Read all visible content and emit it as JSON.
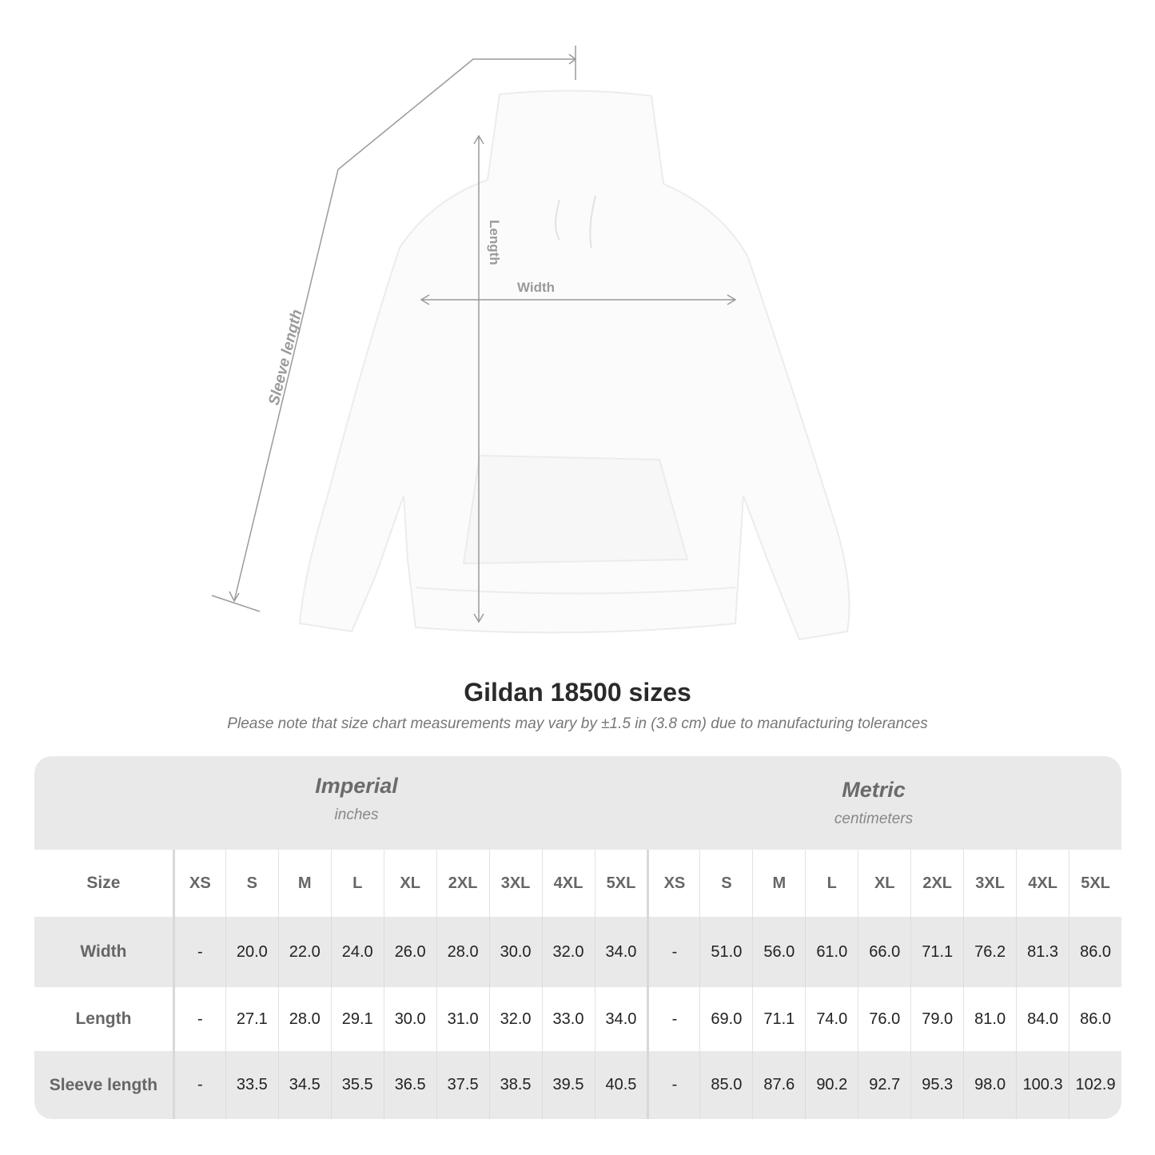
{
  "figure": {
    "labels": {
      "sleeve": "Sleeve length",
      "length": "Length",
      "width": "Width"
    }
  },
  "title": "Gildan 18500 sizes",
  "subtitle": "Please note that size chart measurements may vary by ±1.5 in (3.8 cm) due to manufacturing tolerances",
  "table": {
    "imperial": {
      "name": "Imperial",
      "unit": "inches"
    },
    "metric": {
      "name": "Metric",
      "unit": "centimeters"
    },
    "size_label": "Size",
    "sizes": [
      "XS",
      "S",
      "M",
      "L",
      "XL",
      "2XL",
      "3XL",
      "4XL",
      "5XL"
    ],
    "rows": [
      {
        "label": "Width",
        "imperial": [
          "-",
          "20.0",
          "22.0",
          "24.0",
          "26.0",
          "28.0",
          "30.0",
          "32.0",
          "34.0"
        ],
        "metric": [
          "-",
          "51.0",
          "56.0",
          "61.0",
          "66.0",
          "71.1",
          "76.2",
          "81.3",
          "86.0"
        ]
      },
      {
        "label": "Length",
        "imperial": [
          "-",
          "27.1",
          "28.0",
          "29.1",
          "30.0",
          "31.0",
          "32.0",
          "33.0",
          "34.0"
        ],
        "metric": [
          "-",
          "69.0",
          "71.1",
          "74.0",
          "76.0",
          "79.0",
          "81.0",
          "84.0",
          "86.0"
        ]
      },
      {
        "label": "Sleeve length",
        "imperial": [
          "-",
          "33.5",
          "34.5",
          "35.5",
          "36.5",
          "37.5",
          "38.5",
          "39.5",
          "40.5"
        ],
        "metric": [
          "-",
          "85.0",
          "87.6",
          "90.2",
          "92.7",
          "95.3",
          "98.0",
          "100.3",
          "102.9"
        ]
      }
    ]
  },
  "colors": {
    "band": "#e9e9e9",
    "label": "#666666",
    "measure_line": "#9a9a9a"
  }
}
